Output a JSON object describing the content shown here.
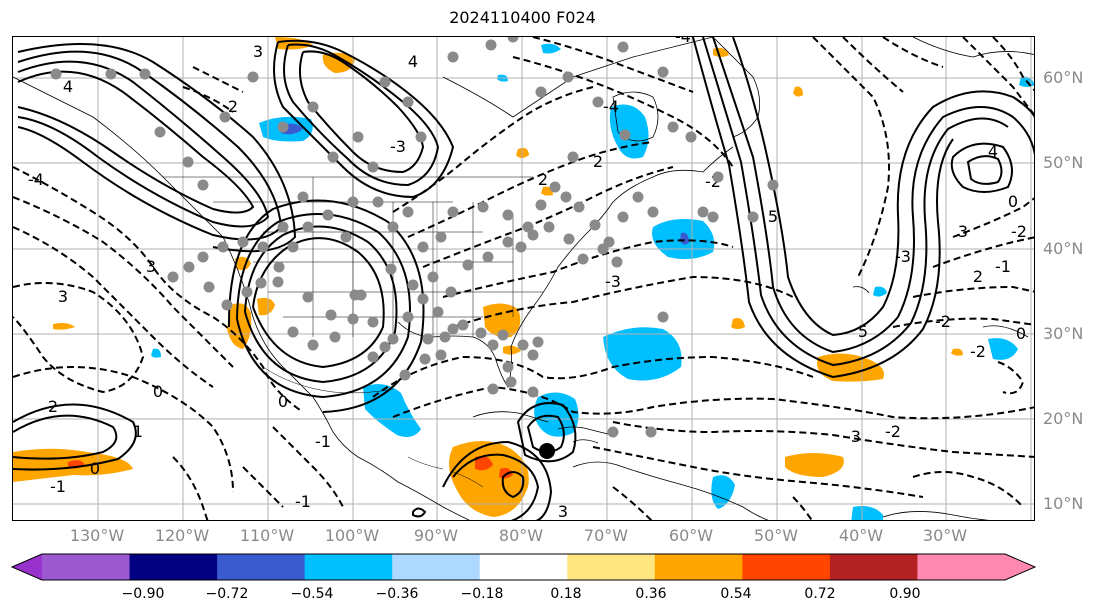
{
  "title": "2024110400 F024",
  "lat_labels": [
    "60°N",
    "50°N",
    "40°N",
    "30°N",
    "20°N",
    "10°N"
  ],
  "lon_labels": [
    "130°W",
    "120°W",
    "110°W",
    "100°W",
    "90°W",
    "80°W",
    "70°W",
    "60°W",
    "50°W",
    "40°W",
    "30°W"
  ],
  "colorbar": {
    "ticks": [
      "−0.90",
      "−0.72",
      "−0.54",
      "−0.36",
      "−0.18",
      "0.18",
      "0.36",
      "0.54",
      "0.72",
      "0.90"
    ],
    "under_color": "#9932cc",
    "over_color": "#ff88b0",
    "colors": [
      "#000080",
      "#3a5bd0",
      "#00bfff",
      "#add8ff",
      "#ffffff",
      "#ffe680",
      "#ffa500",
      "#ff4500",
      "#b22222"
    ]
  },
  "contour_labels": [
    "4",
    "4",
    "4",
    "3",
    "3",
    "2",
    "2",
    "1",
    "0",
    "0",
    "0",
    "-3",
    "-3",
    "-4",
    "-4",
    "-4",
    "-2",
    "-2",
    "-3",
    "2",
    "0",
    "5",
    "5",
    "2",
    "3",
    "-1",
    "-1",
    "-3",
    "0",
    "-2",
    "-1",
    "3",
    "-1",
    "-2",
    "-2",
    "3",
    "2"
  ]
}
